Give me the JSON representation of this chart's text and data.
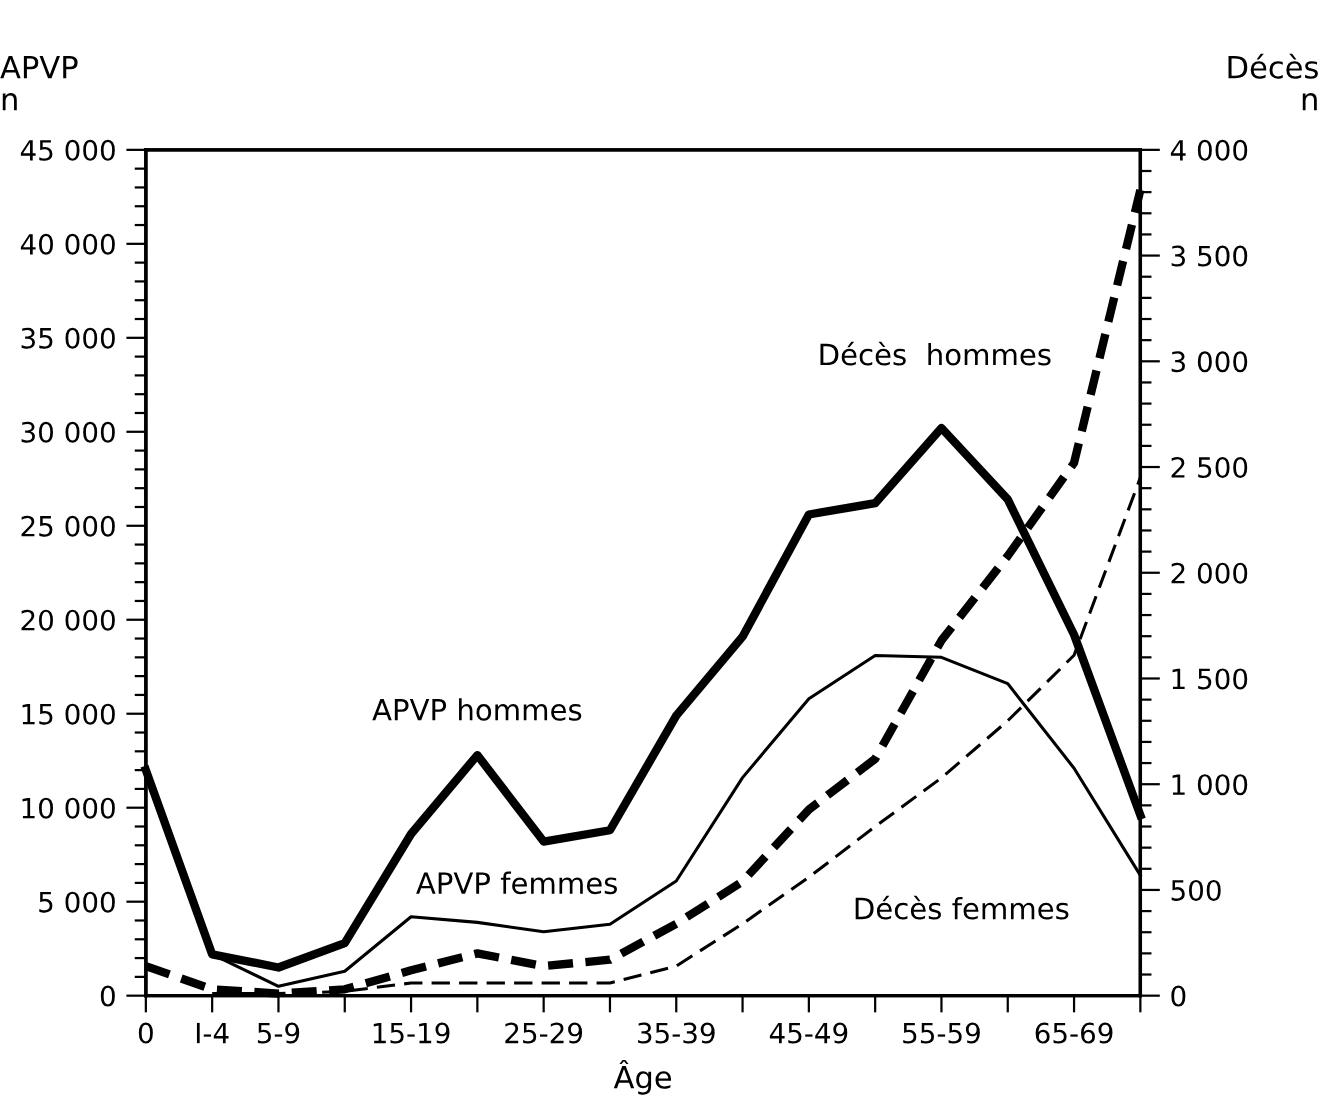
{
  "chart_data": {
    "type": "line",
    "ylabel": "APVP\nn",
    "y2label": "Décès\nn",
    "xlabel": "Âge",
    "categories": [
      "0",
      "I-4",
      "5-9",
      null,
      "15-19",
      null,
      "25-29",
      null,
      "35-39",
      null,
      "45-49",
      null,
      "55-59",
      null,
      "65-69",
      null
    ],
    "series": [
      {
        "name": "APVP hommes",
        "color": "#000000",
        "line_style": "solid",
        "values": [
          12000,
          2200,
          1500,
          2800,
          8600,
          12800,
          8200,
          8800,
          14900,
          19100,
          25600,
          26200,
          30200,
          26400,
          19200,
          9600
        ]
      },
      {
        "name": "APVP femmes",
        "color": "#000000",
        "line_style": "solid",
        "values": [
          null,
          2200,
          500,
          1300,
          4200,
          3900,
          3400,
          3800,
          6100,
          11600,
          15800,
          18100,
          18000,
          16600,
          12100,
          6400
        ]
      },
      {
        "name": "Décès  hommes",
        "color": "#000000",
        "line_style": "dashed",
        "axis": "y2",
        "values": [
          140,
          30,
          10,
          30,
          120,
          200,
          140,
          170,
          340,
          540,
          880,
          1120,
          1680,
          2080,
          2520,
          3810
        ]
      },
      {
        "name": "Décès femmes",
        "color": "#000000",
        "line_style": "dashed",
        "axis": "y2",
        "values": [
          null,
          10,
          10,
          20,
          60,
          60,
          60,
          60,
          140,
          340,
          560,
          800,
          1030,
          1300,
          1610,
          2450
        ]
      }
    ],
    "ylim": [
      0,
      45000
    ],
    "yticks": [
      {
        "value": 0,
        "label": "0"
      },
      {
        "value": 5000,
        "label": "5 000"
      },
      {
        "value": 10000,
        "label": "10 000"
      },
      {
        "value": 15000,
        "label": "15 000"
      },
      {
        "value": 20000,
        "label": "20 000"
      },
      {
        "value": 25000,
        "label": "25 000"
      },
      {
        "value": 30000,
        "label": "30 000"
      },
      {
        "value": 35000,
        "label": "35 000"
      },
      {
        "value": 40000,
        "label": "40 000"
      },
      {
        "value": 45000,
        "label": "45 000"
      }
    ],
    "y2lim": [
      0,
      4000
    ],
    "y2ticks": [
      {
        "value": 0,
        "label": "0"
      },
      {
        "value": 500,
        "label": "500"
      },
      {
        "value": 1000,
        "label": "1 000"
      },
      {
        "value": 1500,
        "label": "1 500"
      },
      {
        "value": 2000,
        "label": "2 000"
      },
      {
        "value": 2500,
        "label": "2 500"
      },
      {
        "value": 3000,
        "label": "3 000"
      },
      {
        "value": 3500,
        "label": "3 500"
      },
      {
        "value": 4000,
        "label": "4 000"
      }
    ],
    "grid": false,
    "legend": false,
    "marker": "none"
  }
}
